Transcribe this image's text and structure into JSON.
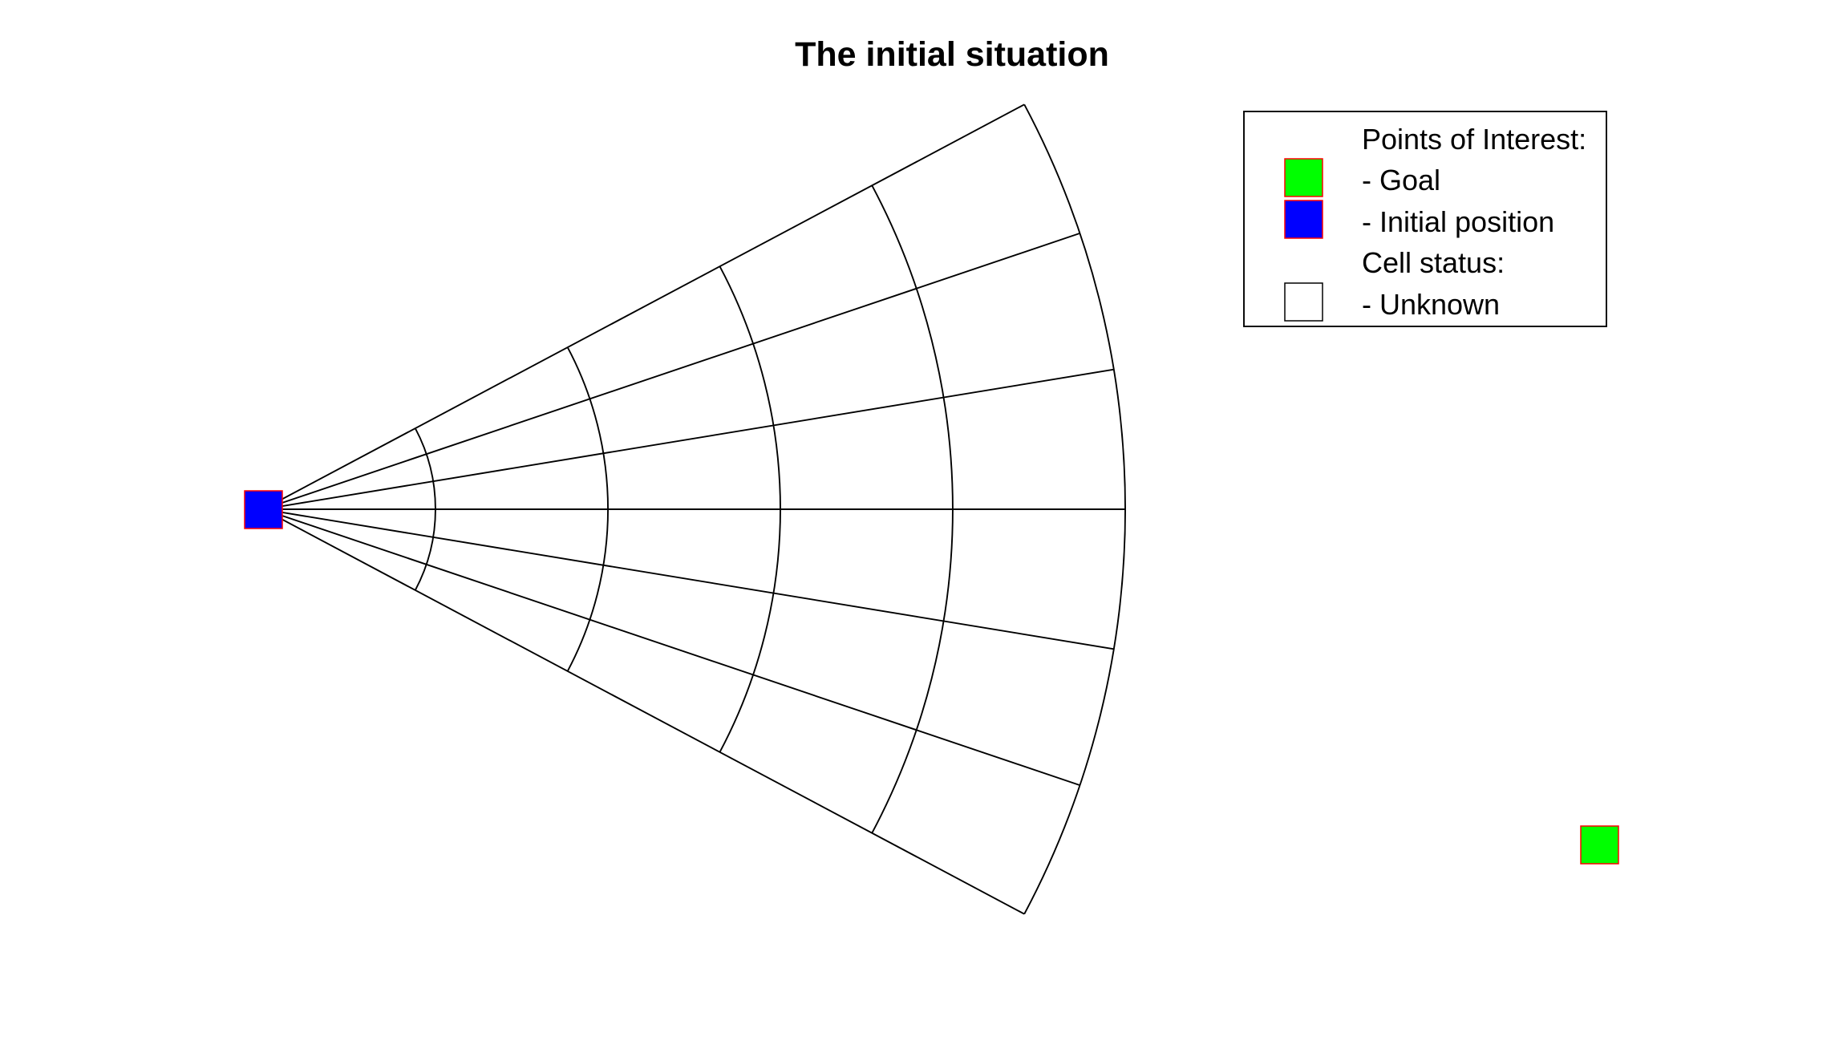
{
  "title": "The initial situation",
  "legend": {
    "section_poi": "Points of Interest:",
    "goal_label": "- Goal",
    "initial_label": "- Initial position",
    "section_cell": "Cell status:",
    "unknown_label": "- Unknown"
  },
  "grid": {
    "angle_range_deg": [
      -28,
      28
    ],
    "angular_steps": 6,
    "radial_steps": 5
  },
  "colors": {
    "goal_fill": "#00ff00",
    "initial_fill": "#0000ff",
    "marker_edge": "#ff0000",
    "unknown_fill": "#ffffff",
    "grid_line": "#000000"
  }
}
